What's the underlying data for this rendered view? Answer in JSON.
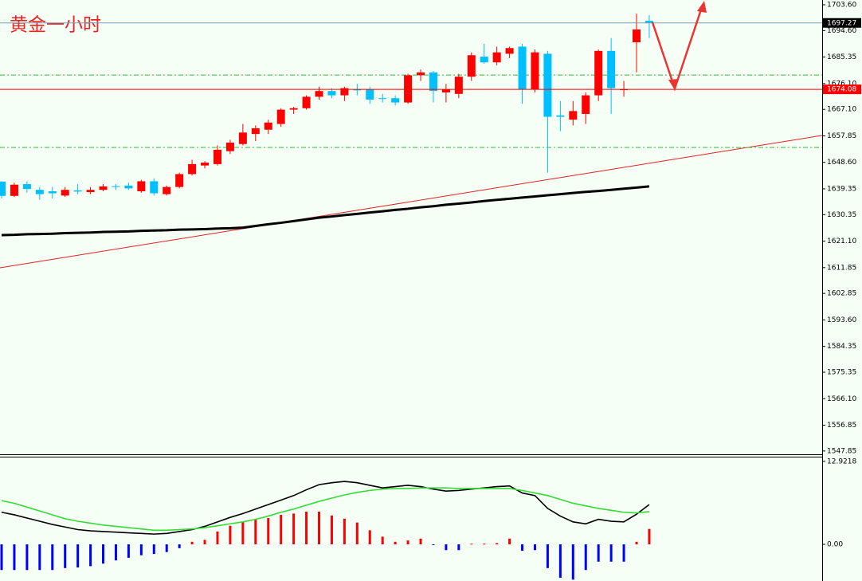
{
  "chart_data": [
    {
      "type": "candlestick",
      "title": "黄金一小时",
      "up_color": "#ff0000",
      "down_color": "#00bfff",
      "open": [
        1641.9,
        1636.9,
        1641.0,
        1639.0,
        1638.5,
        1637.0,
        1638.8,
        1638.2,
        1639.0,
        1640.3,
        1640.5,
        1638.5,
        1642.0,
        1637.5,
        1640.0,
        1644.5,
        1647.5,
        1648.0,
        1652.5,
        1655.0,
        1658.5,
        1660.0,
        1662.0,
        1667.0,
        1667.5,
        1671.5,
        1673.5,
        1672.0,
        1674.0,
        1674.0,
        1671.0,
        1671.0,
        1669.5,
        1679.0,
        1680.0,
        1673.0,
        1672.5,
        1678.5,
        1685.5,
        1683.5,
        1686.5,
        1689.0,
        1674.0,
        1686.5,
        1665.0,
        1663.5,
        1665.5,
        1672.0,
        1687.5,
        1673.9,
        1690.5,
        1698.0
      ],
      "high": [
        1642.0,
        1641.5,
        1642.0,
        1640.0,
        1640.0,
        1640.0,
        1641.0,
        1640.0,
        1641.0,
        1641.0,
        1641.5,
        1642.5,
        1643.0,
        1640.5,
        1645.0,
        1649.5,
        1649.0,
        1654.5,
        1656.5,
        1662.0,
        1661.5,
        1663.5,
        1667.5,
        1668.0,
        1672.0,
        1675.0,
        1674.5,
        1675.0,
        1676.0,
        1675.0,
        1672.5,
        1672.0,
        1679.5,
        1681.0,
        1680.5,
        1676.0,
        1679.5,
        1687.0,
        1690.0,
        1689.0,
        1689.0,
        1690.0,
        1688.0,
        1687.5,
        1670.0,
        1670.0,
        1673.0,
        1688.0,
        1692.0,
        1677.0,
        1700.5,
        1700.0
      ],
      "low": [
        1636.0,
        1636.5,
        1638.0,
        1635.5,
        1636.0,
        1636.5,
        1637.5,
        1637.5,
        1638.5,
        1639.0,
        1639.0,
        1638.0,
        1637.0,
        1637.0,
        1639.5,
        1644.0,
        1646.5,
        1647.5,
        1651.5,
        1654.5,
        1656.0,
        1658.5,
        1661.0,
        1665.5,
        1667.0,
        1670.5,
        1671.0,
        1670.0,
        1672.0,
        1669.0,
        1669.5,
        1668.5,
        1669.0,
        1677.0,
        1669.5,
        1669.5,
        1671.0,
        1677.0,
        1683.0,
        1682.5,
        1685.0,
        1669.0,
        1673.0,
        1645.0,
        1659.5,
        1661.5,
        1662.0,
        1670.0,
        1665.5,
        1671.5,
        1680.0,
        1692.0
      ],
      "close": [
        1636.9,
        1640.8,
        1639.3,
        1637.5,
        1637.8,
        1639.0,
        1638.4,
        1639.0,
        1640.2,
        1640.0,
        1639.5,
        1642.0,
        1637.8,
        1640.0,
        1644.5,
        1648.0,
        1648.5,
        1653.0,
        1655.5,
        1659.0,
        1660.5,
        1662.5,
        1667.0,
        1667.5,
        1671.5,
        1673.5,
        1672.0,
        1674.5,
        1673.8,
        1670.5,
        1670.7,
        1669.5,
        1679.0,
        1680.0,
        1673.5,
        1674.0,
        1678.5,
        1686.0,
        1683.5,
        1687.0,
        1688.5,
        1674.0,
        1687.0,
        1664.5,
        1664.5,
        1666.5,
        1672.0,
        1687.5,
        1674.5,
        1674.1,
        1695.0,
        1697.3
      ],
      "ma": {
        "color": "#000000",
        "values": [
          1623.2,
          1623.3,
          1623.5,
          1623.6,
          1623.7,
          1623.9,
          1624.0,
          1624.1,
          1624.3,
          1624.4,
          1624.5,
          1624.7,
          1624.8,
          1624.9,
          1625.1,
          1625.2,
          1625.3,
          1625.5,
          1625.6,
          1625.8,
          1626.4,
          1627.0,
          1627.5,
          1628.1,
          1628.7,
          1629.3,
          1629.7,
          1630.2,
          1630.6,
          1631.1,
          1631.5,
          1632.0,
          1632.4,
          1632.9,
          1633.3,
          1633.8,
          1634.2,
          1634.6,
          1635.1,
          1635.5,
          1635.9,
          1636.3,
          1636.7,
          1637.1,
          1637.5,
          1637.9,
          1638.3,
          1638.6,
          1639.0,
          1639.4,
          1639.8,
          1640.2
        ]
      },
      "levels": {
        "color": "#33bb33",
        "values": [
          1679.1,
          1653.8
        ]
      },
      "trendline": {
        "color": "#dd2222",
        "values": [
          1611.8,
          1658.0
        ]
      },
      "price_lines": [
        {
          "value": 1697.27,
          "color": "#7aa0b8",
          "box": "#000000"
        },
        {
          "value": 1674.08,
          "color": "#ff0000",
          "box": "#ff0000"
        }
      ],
      "ylim": [
        1546.7,
        1705.27
      ],
      "yticks": [
        {
          "value": 1703.6,
          "label": "1703.60"
        },
        {
          "value": 1694.6,
          "label": "1694.60"
        },
        1685.35,
        {
          "value": 1676.1,
          "label": "1676.10"
        },
        {
          "value": 1667.1,
          "label": "1667.10"
        },
        1657.85,
        {
          "value": 1648.6,
          "label": "1648.60"
        },
        1639.35,
        1630.35,
        {
          "value": 1621.1,
          "label": "1621.10"
        },
        1611.85,
        1602.85,
        {
          "value": 1593.6,
          "label": "1593.60"
        },
        1584.35,
        1575.35,
        {
          "value": 1566.1,
          "label": "1566.10"
        },
        1556.85,
        1547.85
      ]
    },
    {
      "type": "macd",
      "pos_color": "#ff0000",
      "neg_color": "#0000ff",
      "histogram": [
        -4.0,
        -4.0,
        -4.0,
        -4.0,
        -4.0,
        -3.7,
        -3.6,
        -3.4,
        -3.0,
        -2.5,
        -2.1,
        -1.7,
        -1.5,
        -1.2,
        -0.6,
        0.4,
        0.7,
        2.0,
        2.9,
        3.5,
        3.9,
        4.1,
        4.6,
        4.8,
        5.1,
        5.1,
        4.5,
        4.0,
        3.4,
        2.2,
        1.2,
        0.4,
        0.6,
        0.9,
        -0.1,
        -0.9,
        -0.9,
        0.1,
        0.1,
        0.2,
        0.9,
        -1.0,
        -0.9,
        -3.7,
        -5.2,
        -5.5,
        -4.0,
        -2.7,
        -2.7,
        -2.7,
        0.4,
        2.4
      ],
      "series": [
        {
          "color": "#000000",
          "values": [
            5.0,
            4.6,
            4.1,
            3.6,
            3.1,
            2.7,
            2.3,
            2.1,
            2.0,
            1.9,
            1.8,
            1.7,
            1.6,
            1.7,
            2.0,
            2.3,
            2.8,
            3.5,
            4.2,
            4.8,
            5.5,
            6.2,
            6.9,
            7.6,
            8.5,
            9.3,
            9.6,
            9.8,
            9.6,
            9.2,
            8.8,
            9.0,
            9.2,
            9.0,
            8.6,
            8.3,
            8.4,
            8.6,
            8.8,
            9.0,
            9.1,
            8.0,
            7.6,
            5.6,
            4.4,
            3.5,
            3.2,
            3.9,
            3.6,
            3.5,
            4.7,
            6.2
          ]
        },
        {
          "color": "#33dd33",
          "values": [
            6.8,
            6.4,
            5.8,
            5.2,
            4.6,
            4.0,
            3.6,
            3.3,
            3.0,
            2.8,
            2.6,
            2.4,
            2.2,
            2.2,
            2.3,
            2.4,
            2.6,
            2.9,
            3.2,
            3.5,
            3.9,
            4.4,
            5.0,
            5.5,
            6.1,
            6.7,
            7.2,
            7.7,
            8.1,
            8.4,
            8.6,
            8.7,
            8.7,
            8.8,
            8.8,
            8.8,
            8.7,
            8.7,
            8.7,
            8.7,
            8.7,
            8.4,
            8.0,
            7.6,
            7.0,
            6.4,
            6.0,
            5.6,
            5.3,
            5.0,
            4.9,
            5.1
          ]
        }
      ],
      "ylim": [
        -5.71,
        13.66
      ],
      "yticks": [
        12.9218,
        {
          "value": 0,
          "label": "0.00"
        }
      ]
    }
  ]
}
